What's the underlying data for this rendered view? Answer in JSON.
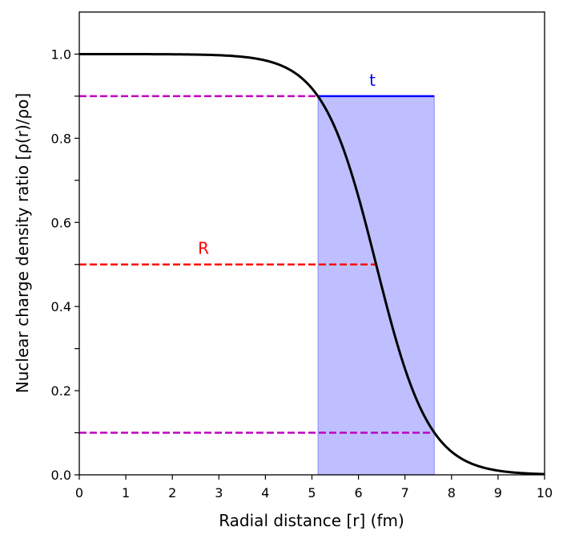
{
  "chart_data": {
    "type": "line",
    "xlabel": "Radial distance [r] (fm)",
    "ylabel": "Nuclear charge density ratio [ρ(r)/ρo]",
    "xlim": [
      0,
      10
    ],
    "ylim": [
      0,
      1.1
    ],
    "x_ticks": [
      0,
      1,
      2,
      3,
      4,
      5,
      6,
      7,
      8,
      9,
      10
    ],
    "x_tick_labels": [
      "0",
      "1",
      "2",
      "3",
      "4",
      "5",
      "6",
      "7",
      "8",
      "9",
      "10"
    ],
    "y_ticks": [
      0.0,
      0.1,
      0.2,
      0.3,
      0.4,
      0.5,
      0.6,
      0.7,
      0.8,
      0.9,
      1.0
    ],
    "y_tick_labels": [
      "0.0",
      "",
      "0.2",
      "",
      "0.4",
      "",
      "0.6",
      "",
      "0.8",
      "",
      "1.0"
    ],
    "series": [
      {
        "curve": "fermi",
        "rho0": 1.0,
        "R": 6.38,
        "a": 0.57,
        "x_range": [
          0,
          10
        ],
        "color": "#000000"
      }
    ],
    "reference_lines": [
      {
        "y": 0.9,
        "x": [
          0,
          5.13
        ],
        "style": "dashed",
        "color": "#bf00bf"
      },
      {
        "y": 0.1,
        "x": [
          0,
          7.63
        ],
        "style": "dashed",
        "color": "#bf00bf"
      },
      {
        "y": 0.5,
        "x": [
          0,
          6.38
        ],
        "style": "dashed",
        "color": "#ff0000"
      }
    ],
    "t_line": {
      "y": 0.9,
      "x": [
        5.13,
        7.63
      ],
      "color": "#0000ff"
    },
    "shaded_region": {
      "x": [
        5.13,
        7.63
      ],
      "y": [
        0,
        0.9
      ],
      "color": "#0000ff"
    },
    "annotations": [
      {
        "text": "t",
        "x": 6.3,
        "y": 0.925,
        "color": "#0000ff"
      },
      {
        "text": "R",
        "x": 2.67,
        "y": 0.525,
        "color": "#ff0000"
      }
    ],
    "grid": false,
    "legend": "none"
  }
}
